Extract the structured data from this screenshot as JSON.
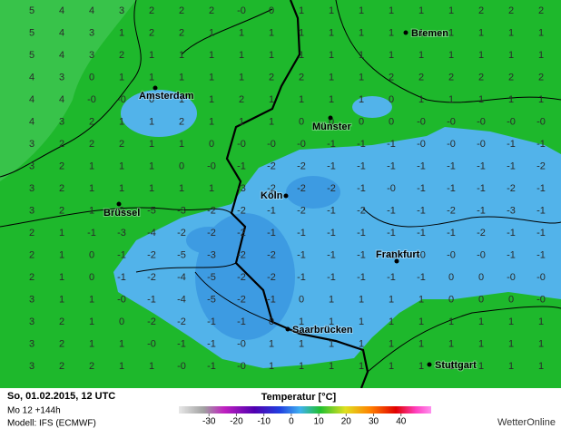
{
  "header": {
    "date": "So, 01.02.2015, 12 UTC",
    "run": "Mo 12 +144h",
    "model": "Modell: IFS (ECMWF)"
  },
  "legend": {
    "title": "Temperatur [°C]",
    "lim": [
      -41,
      51
    ],
    "ticks": [
      -30,
      -20,
      -10,
      0,
      10,
      20,
      30,
      40
    ]
  },
  "brand": "WetterOnline",
  "cities": [
    {
      "name": "Bremen"
    },
    {
      "name": "Amsterdam"
    },
    {
      "name": "Münster"
    },
    {
      "name": "Köln"
    },
    {
      "name": "Brüssel"
    },
    {
      "name": "Frankfurt"
    },
    {
      "name": "Saarbrücken"
    },
    {
      "name": "Stuttgart"
    }
  ],
  "grid": {
    "rows": [
      [
        "5",
        "4",
        "4",
        "3",
        "2",
        "2",
        "2",
        "-0",
        "0",
        "1",
        "1",
        "1",
        "1",
        "1",
        "1",
        "2",
        "2",
        "2"
      ],
      [
        "5",
        "4",
        "3",
        "1",
        "2",
        "2",
        "1",
        "1",
        "1",
        "1",
        "1",
        "1",
        "1",
        "1",
        "1",
        "1",
        "1",
        "1"
      ],
      [
        "5",
        "4",
        "3",
        "2",
        "1",
        "1",
        "1",
        "1",
        "1",
        "1",
        "1",
        "1",
        "1",
        "1",
        "1",
        "1",
        "1",
        "1"
      ],
      [
        "4",
        "3",
        "0",
        "1",
        "1",
        "1",
        "1",
        "1",
        "2",
        "2",
        "1",
        "1",
        "2",
        "2",
        "2",
        "2",
        "2",
        "2"
      ],
      [
        "4",
        "4",
        "-0",
        "-0",
        "0",
        "1",
        "1",
        "2",
        "1",
        "1",
        "1",
        "1",
        "0",
        "1",
        "1",
        "1",
        "1",
        "1"
      ],
      [
        "4",
        "3",
        "2",
        "1",
        "1",
        "2",
        "1",
        "1",
        "1",
        "0",
        "0",
        "0",
        "0",
        "-0",
        "-0",
        "-0",
        "-0",
        "-0"
      ],
      [
        "3",
        "2",
        "2",
        "2",
        "1",
        "1",
        "0",
        "-0",
        "-0",
        "-0",
        "-1",
        "-1",
        "-1",
        "-0",
        "-0",
        "-0",
        "-1",
        "-1"
      ],
      [
        "3",
        "2",
        "1",
        "1",
        "1",
        "0",
        "-0",
        "-1",
        "-2",
        "-2",
        "-1",
        "-1",
        "-1",
        "-1",
        "-1",
        "-1",
        "-1",
        "-2"
      ],
      [
        "3",
        "2",
        "1",
        "1",
        "1",
        "1",
        "1",
        "-3",
        "-2",
        "-2",
        "-2",
        "-1",
        "-0",
        "-1",
        "-1",
        "-1",
        "-2",
        "-1"
      ],
      [
        "3",
        "2",
        "1",
        "0",
        "-5",
        "-3",
        "-2",
        "-2",
        "-1",
        "-2",
        "-1",
        "-2",
        "-1",
        "-1",
        "-2",
        "-1",
        "-3",
        "-1"
      ],
      [
        "2",
        "1",
        "-1",
        "-3",
        "-4",
        "-2",
        "-2",
        "-2",
        "-1",
        "-1",
        "-1",
        "-1",
        "-1",
        "-1",
        "-1",
        "-2",
        "-1",
        "-1"
      ],
      [
        "2",
        "1",
        "0",
        "-1",
        "-2",
        "-5",
        "-3",
        "-2",
        "-2",
        "-1",
        "-1",
        "-1",
        "-1",
        "-0",
        "-0",
        "-0",
        "-1",
        "-1"
      ],
      [
        "2",
        "1",
        "0",
        "-1",
        "-2",
        "-4",
        "-5",
        "-2",
        "-2",
        "-1",
        "-1",
        "-1",
        "-1",
        "-1",
        "0",
        "0",
        "-0",
        "-0"
      ],
      [
        "3",
        "1",
        "1",
        "-0",
        "-1",
        "-4",
        "-5",
        "-2",
        "-1",
        "0",
        "1",
        "1",
        "1",
        "1",
        "0",
        "0",
        "0",
        "-0"
      ],
      [
        "3",
        "2",
        "1",
        "0",
        "-2",
        "-2",
        "-1",
        "-1",
        "0",
        "1",
        "1",
        "1",
        "1",
        "1",
        "1",
        "1",
        "1",
        "1"
      ],
      [
        "3",
        "2",
        "1",
        "1",
        "-0",
        "-1",
        "-1",
        "-0",
        "1",
        "1",
        "1",
        "1",
        "1",
        "1",
        "1",
        "1",
        "1",
        "1"
      ],
      [
        "3",
        "2",
        "2",
        "1",
        "1",
        "-0",
        "-1",
        "-0",
        "1",
        "1",
        "1",
        "1",
        "1",
        "1",
        "1",
        "1",
        "1",
        "1"
      ]
    ]
  }
}
